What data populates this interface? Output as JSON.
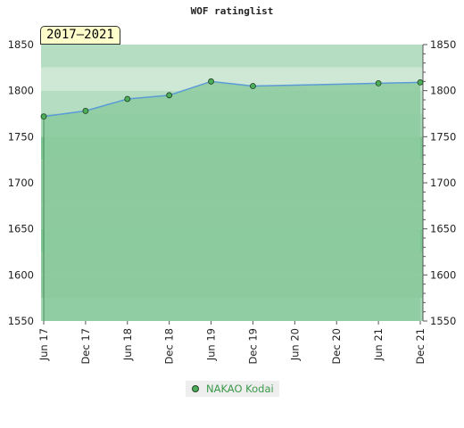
{
  "chart_data": {
    "type": "line",
    "title": "WOF ratinglist",
    "period_label": "2017–2021",
    "x": [
      "Jun 17",
      "Dec 17",
      "Jun 18",
      "Dec 18",
      "Jun 19",
      "Dec 19",
      "Jun 20",
      "Dec 20",
      "Jun 21",
      "Dec 21"
    ],
    "series": [
      {
        "name": "NAKAO Kodai",
        "points": [
          {
            "x": "Jun 17",
            "y": 1772
          },
          {
            "x": "Dec 17",
            "y": 1778
          },
          {
            "x": "Jun 18",
            "y": 1791
          },
          {
            "x": "Dec 18",
            "y": 1795
          },
          {
            "x": "Jun 19",
            "y": 1810
          },
          {
            "x": "Dec 19",
            "y": 1805
          },
          {
            "x": "Jun 21",
            "y": 1808
          },
          {
            "x": "Dec 21",
            "y": 1809
          }
        ]
      }
    ],
    "ylim": [
      1550,
      1850
    ],
    "yticks": [
      1550,
      1600,
      1650,
      1700,
      1750,
      1800,
      1850
    ],
    "y_axis_both_sides": true,
    "legend_position": "bottom-center",
    "colors": {
      "band_dark": "#7dc593",
      "band_mid": "#8dcb9f",
      "band_light": "#a3d6b2",
      "band_pale": "#b5ddc2",
      "band_palest": "#cfe8d6",
      "area_fill": "#8dcb9f",
      "line": "#5b9bd5",
      "marker": "#4cae5a"
    }
  }
}
